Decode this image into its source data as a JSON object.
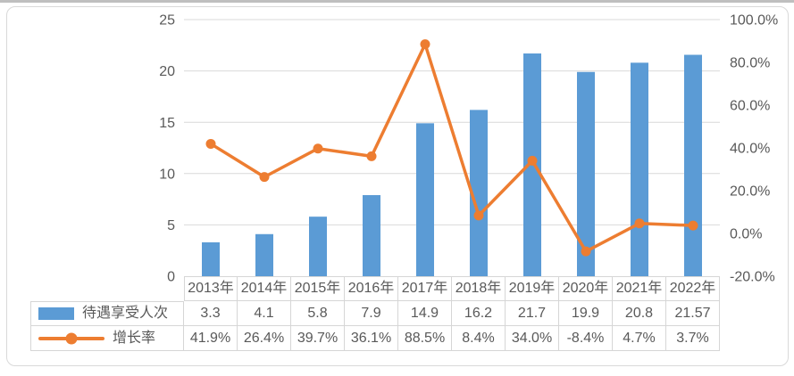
{
  "chart_data": {
    "type": "combo",
    "title": "",
    "categories": [
      "2013年",
      "2014年",
      "2015年",
      "2016年",
      "2017年",
      "2018年",
      "2019年",
      "2020年",
      "2021年",
      "2022年"
    ],
    "series": [
      {
        "name": "待遇享受人次",
        "type": "bar",
        "axis": "left",
        "values": [
          3.3,
          4.1,
          5.8,
          7.9,
          14.9,
          16.2,
          21.7,
          19.9,
          20.8,
          21.57
        ],
        "labels": [
          "3.3",
          "4.1",
          "5.8",
          "7.9",
          "14.9",
          "16.2",
          "21.7",
          "19.9",
          "20.8",
          "21.57"
        ]
      },
      {
        "name": "增长率",
        "type": "line",
        "axis": "right",
        "values": [
          41.9,
          26.4,
          39.7,
          36.1,
          88.5,
          8.4,
          34.0,
          -8.4,
          4.7,
          3.7
        ],
        "labels": [
          "41.9%",
          "26.4%",
          "39.7%",
          "36.1%",
          "88.5%",
          "8.4%",
          "34.0%",
          "-8.4%",
          "4.7%",
          "3.7%"
        ]
      }
    ],
    "left_axis": {
      "min": 0,
      "max": 25,
      "tick_labels": [
        "0",
        "5",
        "10",
        "15",
        "20",
        "25"
      ]
    },
    "right_axis": {
      "min": -20,
      "max": 100,
      "tick_labels": [
        "-20.0%",
        "0.0%",
        "20.0%",
        "40.0%",
        "60.0%",
        "80.0%",
        "100.0%"
      ]
    },
    "grid": true,
    "legend_position": "table-left"
  },
  "colors": {
    "bar_series": "#5b9bd5",
    "line_series": "#ed7d31",
    "gridline": "#d9d9d9",
    "axis_text": "#595959",
    "table_text": "#595959",
    "table_border": "#d6d6d6",
    "frame_border": "#d9d9d9",
    "top_divider": "#bfbfbf"
  }
}
